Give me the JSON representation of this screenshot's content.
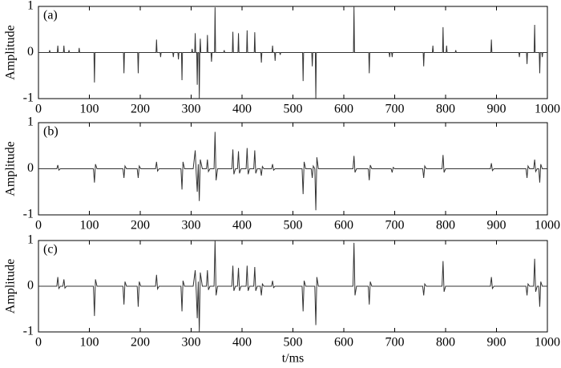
{
  "chart_data": [
    {
      "type": "line",
      "label": "(a)",
      "ylabel": "Amplitude",
      "color": "#333333",
      "xlim": [
        0,
        1000
      ],
      "ylim": [
        -1,
        1
      ],
      "xticks": [
        0,
        100,
        200,
        300,
        400,
        500,
        600,
        700,
        800,
        900,
        1000
      ],
      "yticks": [
        -1,
        0,
        1
      ],
      "x": [
        0,
        21,
        22,
        23,
        37,
        38,
        39,
        49,
        50,
        51,
        59,
        60,
        61,
        79,
        80,
        81,
        109,
        110,
        111,
        167,
        168,
        169,
        195,
        196,
        197,
        231,
        232,
        233,
        239,
        240,
        241,
        264,
        265,
        266,
        274,
        275,
        276,
        281,
        282,
        283,
        301,
        302,
        303,
        307,
        308,
        309,
        311,
        312,
        313,
        315,
        316,
        317,
        318,
        319,
        331,
        332,
        333,
        339,
        340,
        341,
        346,
        347,
        348,
        364,
        365,
        366,
        381,
        382,
        383,
        392,
        393,
        394,
        409,
        410,
        411,
        424,
        425,
        426,
        437,
        438,
        439,
        459,
        460,
        461,
        464,
        465,
        466,
        474,
        475,
        476,
        519,
        520,
        521,
        537,
        538,
        539,
        544,
        545,
        546,
        619,
        620,
        621,
        649,
        650,
        651,
        689,
        690,
        691,
        694,
        695,
        696,
        756,
        757,
        758,
        774,
        775,
        776,
        794,
        795,
        796,
        801,
        802,
        803,
        819,
        820,
        821,
        889,
        890,
        891,
        944,
        945,
        946,
        959,
        960,
        961,
        974,
        975,
        976,
        984,
        985,
        986,
        989,
        990,
        991,
        1000
      ],
      "values": [
        0,
        0,
        0.05,
        0,
        0,
        0.15,
        0,
        0,
        0.15,
        0,
        0,
        0.05,
        0,
        0,
        0.1,
        0,
        0,
        -0.65,
        0,
        0,
        -0.45,
        0,
        0,
        -0.45,
        0,
        0,
        0.28,
        0,
        0,
        -0.1,
        0,
        0,
        -0.1,
        0,
        0,
        -0.15,
        0,
        0,
        -0.6,
        0,
        0,
        0.08,
        0,
        0,
        0.42,
        0,
        0,
        -0.7,
        0,
        0,
        -1,
        0,
        0.3,
        0,
        0,
        0.38,
        0,
        0,
        -0.2,
        0,
        0,
        0.98,
        0,
        0,
        0.05,
        0,
        0,
        0.45,
        0,
        0,
        0.42,
        0,
        0,
        0.48,
        0,
        0,
        0.44,
        0,
        0,
        -0.22,
        0,
        0,
        0.15,
        0,
        0,
        -0.18,
        0,
        0,
        -0.05,
        0,
        0,
        -0.62,
        0,
        0,
        -0.3,
        0,
        0,
        -1,
        0,
        0,
        1,
        0,
        0,
        -0.45,
        0,
        0,
        -0.1,
        0,
        0,
        -0.1,
        0,
        0,
        -0.3,
        0,
        0,
        0.15,
        0,
        0,
        0.55,
        0,
        0,
        0.15,
        0,
        0,
        0.05,
        0,
        0,
        0.28,
        0,
        0,
        -0.1,
        0,
        0,
        -0.25,
        0,
        0,
        0.6,
        0,
        0,
        -0.45,
        0,
        0,
        -0.1,
        0,
        0
      ]
    },
    {
      "type": "line",
      "label": "(b)",
      "ylabel": "Amplitude",
      "color": "#333333",
      "xlim": [
        0,
        1000
      ],
      "ylim": [
        -1,
        1
      ],
      "xticks": [
        0,
        100,
        200,
        300,
        400,
        500,
        600,
        700,
        800,
        900,
        1000
      ],
      "yticks": [
        -1,
        0,
        1
      ],
      "x": [
        0,
        36,
        38,
        40,
        43,
        108,
        110,
        112,
        115,
        166,
        168,
        170,
        173,
        194,
        196,
        198,
        201,
        230,
        232,
        234,
        237,
        280,
        282,
        284,
        287,
        304,
        308,
        310,
        312,
        314,
        316,
        318,
        322,
        330,
        332,
        334,
        337,
        345,
        347,
        349,
        352,
        380,
        382,
        384,
        387,
        391,
        393,
        395,
        398,
        408,
        410,
        412,
        415,
        423,
        425,
        427,
        430,
        436,
        438,
        440,
        443,
        458,
        460,
        462,
        465,
        518,
        520,
        522,
        525,
        536,
        538,
        540,
        543,
        545,
        547,
        550,
        618,
        620,
        622,
        625,
        648,
        650,
        652,
        655,
        693,
        695,
        697,
        700,
        755,
        757,
        759,
        762,
        793,
        795,
        797,
        800,
        888,
        890,
        892,
        895,
        958,
        960,
        962,
        965,
        973,
        975,
        977,
        980,
        983,
        985,
        987,
        990,
        1000
      ],
      "values": [
        0,
        0,
        0.08,
        -0.03,
        0,
        0,
        -0.3,
        0.1,
        0,
        0,
        -0.2,
        0.06,
        0,
        0,
        -0.2,
        0.06,
        0,
        0,
        0.15,
        -0.05,
        0,
        0,
        -0.45,
        0.15,
        0,
        0,
        0.4,
        -0.1,
        -0.5,
        0.1,
        -0.7,
        0.2,
        0,
        0,
        0.2,
        -0.06,
        0,
        0,
        0.8,
        -0.25,
        0,
        0,
        0.42,
        -0.12,
        0,
        0,
        0.38,
        -0.1,
        0,
        0,
        0.45,
        -0.12,
        0,
        0,
        0.4,
        -0.1,
        0,
        0,
        -0.15,
        0.05,
        0,
        0,
        0.1,
        -0.03,
        0,
        0,
        -0.55,
        0.15,
        0,
        0,
        -0.2,
        0.06,
        0,
        -0.9,
        0.25,
        0,
        0,
        0.28,
        -0.08,
        0,
        0,
        -0.25,
        0.08,
        0,
        0,
        -0.08,
        0.03,
        0,
        0,
        -0.2,
        0.06,
        0,
        0,
        0.3,
        -0.08,
        0,
        0,
        0.12,
        -0.04,
        0,
        0,
        -0.2,
        0.06,
        0,
        0,
        0.2,
        -0.06,
        0,
        0,
        -0.3,
        0.1,
        0,
        0
      ]
    },
    {
      "type": "line",
      "label": "(c)",
      "ylabel": "Amplitude",
      "xlabel": "t/ms",
      "color": "#333333",
      "xlim": [
        0,
        1000
      ],
      "ylim": [
        -1,
        1
      ],
      "xticks": [
        0,
        100,
        200,
        300,
        400,
        500,
        600,
        700,
        800,
        900,
        1000
      ],
      "yticks": [
        -1,
        0,
        1
      ],
      "x": [
        0,
        36,
        38,
        40,
        43,
        48,
        50,
        52,
        55,
        108,
        110,
        112,
        115,
        166,
        168,
        170,
        173,
        194,
        196,
        198,
        201,
        230,
        232,
        234,
        237,
        280,
        282,
        284,
        287,
        304,
        308,
        310,
        312,
        314,
        316,
        318,
        322,
        330,
        332,
        334,
        337,
        345,
        347,
        349,
        352,
        380,
        382,
        384,
        387,
        391,
        393,
        395,
        398,
        408,
        410,
        412,
        415,
        423,
        425,
        427,
        430,
        436,
        438,
        440,
        443,
        458,
        460,
        462,
        465,
        518,
        520,
        522,
        525,
        543,
        545,
        547,
        550,
        618,
        620,
        622,
        625,
        648,
        650,
        652,
        655,
        755,
        757,
        759,
        762,
        793,
        795,
        797,
        800,
        888,
        890,
        892,
        895,
        958,
        960,
        962,
        965,
        973,
        975,
        977,
        980,
        983,
        985,
        987,
        990,
        1000
      ],
      "values": [
        0,
        0,
        0.2,
        -0.05,
        0,
        0,
        0.15,
        -0.04,
        0,
        0,
        -0.65,
        0.15,
        0,
        0,
        -0.4,
        0.1,
        0,
        0,
        -0.45,
        0.1,
        0,
        0,
        0.25,
        -0.06,
        0,
        0,
        -0.55,
        0.12,
        0,
        0,
        0.35,
        -0.1,
        -0.7,
        0.1,
        -1,
        0.3,
        0,
        0,
        0.35,
        -0.08,
        0,
        0,
        1,
        -0.2,
        0,
        0,
        0.45,
        -0.1,
        0,
        0,
        0.4,
        -0.1,
        0,
        0,
        0.45,
        -0.1,
        0,
        0,
        0.42,
        -0.1,
        0,
        0,
        -0.2,
        0.05,
        0,
        0,
        0.12,
        -0.03,
        0,
        0,
        -0.55,
        0.12,
        0,
        0,
        -0.85,
        0.2,
        0,
        0,
        0.95,
        -0.2,
        0,
        0,
        -0.4,
        0.1,
        0,
        0,
        -0.2,
        0.05,
        0,
        0,
        0.55,
        -0.12,
        0,
        0,
        0.2,
        -0.05,
        0,
        0,
        -0.2,
        0.05,
        0,
        0,
        0.6,
        -0.12,
        0,
        0,
        -0.45,
        0.1,
        0,
        0
      ]
    }
  ]
}
